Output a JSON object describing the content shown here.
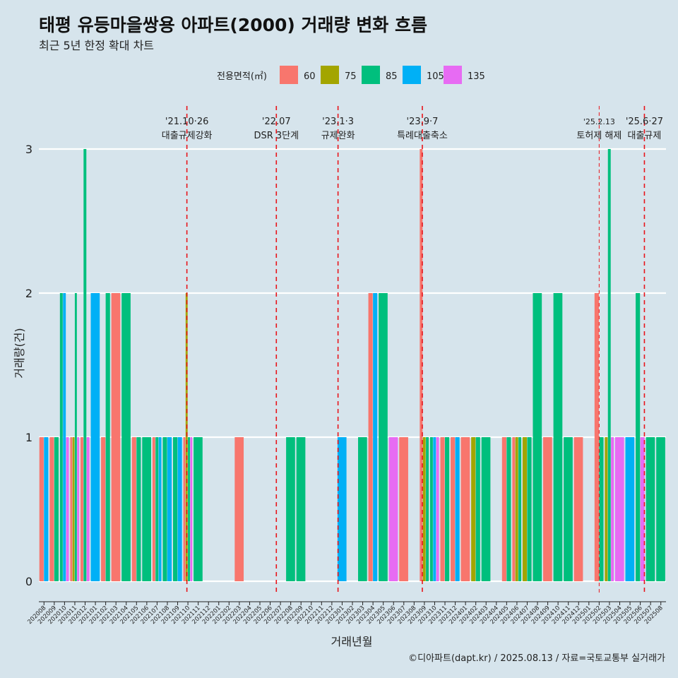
{
  "chart_data": {
    "type": "bar",
    "title": "태평 유등마을쌍용 아파트(2000) 거래량 변화 흐름",
    "subtitle": "최근 5년 한정 확대 차트",
    "xlabel": "거래년월",
    "ylabel": "거래량(건)",
    "ylim": [
      0,
      3
    ],
    "yticks": [
      0,
      1,
      2,
      3
    ],
    "grid": true,
    "legend": {
      "title": "전용면적(㎡)",
      "placement": "top",
      "entries": [
        {
          "label": "60",
          "color": "#f8766d"
        },
        {
          "label": "75",
          "color": "#a3a500"
        },
        {
          "label": "85",
          "color": "#00bf7d"
        },
        {
          "label": "105",
          "color": "#00b0f6"
        },
        {
          "label": "135",
          "color": "#e76bf3"
        }
      ]
    },
    "categories": [
      "202008",
      "202009",
      "202010",
      "202011",
      "202012",
      "202101",
      "202102",
      "202103",
      "202104",
      "202105",
      "202106",
      "202107",
      "202108",
      "202109",
      "202110",
      "202111",
      "202112",
      "202201",
      "202202",
      "202203",
      "202204",
      "202205",
      "202206",
      "202207",
      "202208",
      "202209",
      "202210",
      "202211",
      "202212",
      "202301",
      "202302",
      "202303",
      "202304",
      "202305",
      "202306",
      "202307",
      "202308",
      "202309",
      "202310",
      "202311",
      "202312",
      "202401",
      "202402",
      "202403",
      "202404",
      "202405",
      "202406",
      "202407",
      "202408",
      "202409",
      "202410",
      "202411",
      "202412",
      "202501",
      "202502",
      "202503",
      "202504",
      "202505",
      "202506",
      "202507",
      "202508"
    ],
    "series": [
      {
        "name": "60",
        "values": [
          1,
          1,
          0,
          1,
          1,
          0,
          1,
          2,
          0,
          1,
          0,
          1,
          0,
          0,
          1,
          0,
          0,
          0,
          0,
          1,
          0,
          0,
          0,
          0,
          0,
          0,
          0,
          0,
          0,
          0,
          0,
          0,
          2,
          0,
          0,
          1,
          0,
          3,
          0,
          1,
          1,
          1,
          0,
          0,
          0,
          1,
          1,
          0,
          0,
          1,
          0,
          0,
          1,
          0,
          2,
          0,
          0,
          0,
          0,
          0,
          0
        ]
      },
      {
        "name": "75",
        "values": [
          0,
          0,
          0,
          1,
          0,
          0,
          0,
          0,
          0,
          0,
          0,
          0,
          0,
          0,
          2,
          0,
          0,
          0,
          0,
          0,
          0,
          0,
          0,
          0,
          0,
          0,
          0,
          0,
          0,
          0,
          0,
          0,
          0,
          0,
          0,
          0,
          0,
          1,
          0,
          0,
          0,
          0,
          1,
          0,
          0,
          0,
          1,
          1,
          0,
          0,
          0,
          0,
          0,
          0,
          0,
          1,
          0,
          0,
          0,
          0,
          0
        ]
      },
      {
        "name": "85",
        "values": [
          0,
          1,
          2,
          2,
          3,
          0,
          2,
          0,
          2,
          1,
          1,
          1,
          1,
          1,
          1,
          1,
          0,
          0,
          0,
          0,
          0,
          0,
          0,
          0,
          1,
          1,
          0,
          0,
          0,
          0,
          0,
          1,
          0,
          2,
          0,
          0,
          0,
          1,
          1,
          1,
          0,
          0,
          1,
          1,
          0,
          1,
          1,
          1,
          2,
          0,
          2,
          1,
          0,
          0,
          1,
          3,
          0,
          0,
          2,
          1,
          1
        ]
      },
      {
        "name": "105",
        "values": [
          1,
          0,
          2,
          0,
          0,
          2,
          0,
          0,
          0,
          0,
          0,
          1,
          1,
          1,
          0,
          0,
          0,
          0,
          0,
          0,
          0,
          0,
          0,
          0,
          0,
          0,
          0,
          0,
          0,
          1,
          0,
          0,
          2,
          0,
          0,
          0,
          0,
          0,
          1,
          0,
          1,
          0,
          0,
          0,
          0,
          0,
          0,
          0,
          0,
          0,
          0,
          0,
          0,
          0,
          0,
          0,
          0,
          1,
          0,
          0,
          0
        ]
      },
      {
        "name": "135",
        "values": [
          0,
          0,
          1,
          1,
          1,
          0,
          0,
          0,
          0,
          0,
          0,
          0,
          0,
          0,
          1,
          0,
          0,
          0,
          0,
          0,
          0,
          0,
          0,
          0,
          0,
          0,
          0,
          0,
          0,
          0,
          0,
          0,
          0,
          0,
          1,
          0,
          0,
          0,
          1,
          0,
          0,
          0,
          0,
          0,
          0,
          0,
          0,
          0,
          0,
          0,
          0,
          0,
          0,
          0,
          0,
          1,
          1,
          0,
          1,
          0,
          0
        ]
      }
    ],
    "annotations": [
      {
        "x": "202110",
        "offset": 0.4,
        "label1": "'21.10·26",
        "label2": "대출규제강화",
        "style": "dashed"
      },
      {
        "x": "202207",
        "offset": 0.1,
        "label1": "'22.07",
        "label2": "DSR 3단계",
        "style": "dashed"
      },
      {
        "x": "202301",
        "offset": 0.1,
        "label1": "'23.1·3",
        "label2": "규제완화",
        "style": "dashed"
      },
      {
        "x": "202309",
        "offset": 0.3,
        "label1": "'23.9·7",
        "label2": "특례대출축소",
        "style": "dashed"
      },
      {
        "x": "202502",
        "offset": 0.5,
        "label1": "'25.2.13",
        "label2": "토허제 해제",
        "style": "thin-dashed"
      },
      {
        "x": "202506",
        "offset": 0.9,
        "label1": "'25.6·27",
        "label2": "대출규제",
        "style": "dashed"
      }
    ]
  },
  "caption": "©디아파트(dapt.kr) / 2025.08.13 / 자료=국토교통부 실거래가"
}
